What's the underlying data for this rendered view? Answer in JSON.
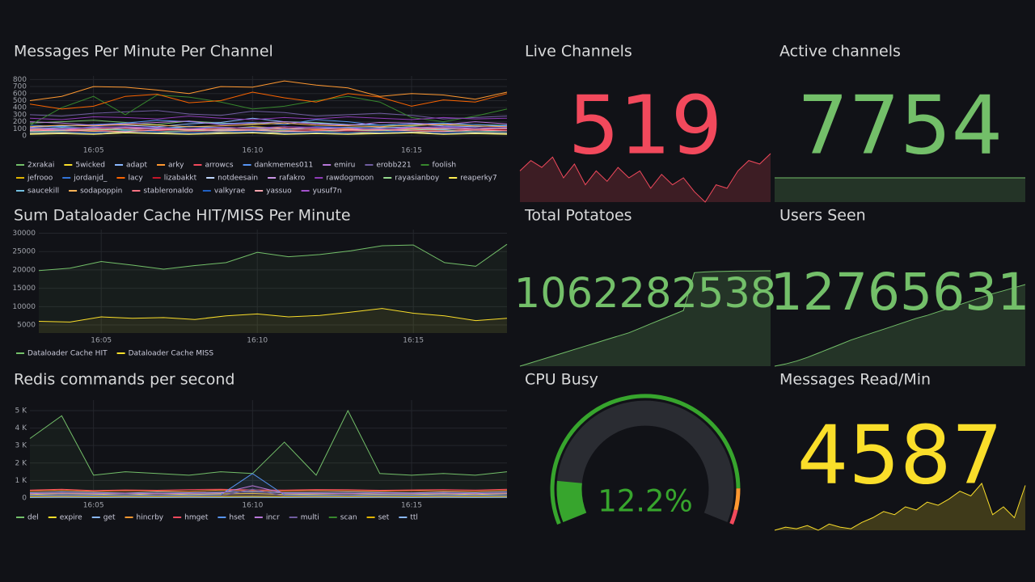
{
  "chart_data": [
    {
      "type": "line",
      "title": "Messages Per Minute Per Channel",
      "x": [
        "16:03",
        "16:04",
        "16:05",
        "16:06",
        "16:07",
        "16:08",
        "16:09",
        "16:10",
        "16:11",
        "16:12",
        "16:13",
        "16:14",
        "16:15",
        "16:16",
        "16:17",
        "16:18"
      ],
      "xticks": [
        "16:05",
        "16:10",
        "16:15"
      ],
      "ylim": [
        0,
        850
      ],
      "yticks": [
        0,
        100,
        200,
        300,
        400,
        500,
        600,
        700,
        800
      ],
      "grid": true,
      "fill": false,
      "series": [
        {
          "name": "2xrakai",
          "color": "#73bf69",
          "values": [
            180,
            200,
            220,
            190,
            160,
            210,
            180,
            170,
            200,
            190,
            160,
            150,
            140,
            170,
            160,
            150
          ]
        },
        {
          "name": "5wicked",
          "color": "#fade2a",
          "values": [
            90,
            100,
            80,
            120,
            110,
            90,
            100,
            130,
            110,
            90,
            100,
            120,
            110,
            100,
            90,
            110
          ]
        },
        {
          "name": "adapt",
          "color": "#8ab8ff",
          "values": [
            120,
            140,
            160,
            150,
            130,
            170,
            190,
            250,
            200,
            180,
            160,
            150,
            170,
            140,
            130,
            150
          ]
        },
        {
          "name": "arky",
          "color": "#ff9830",
          "values": [
            500,
            560,
            700,
            690,
            650,
            600,
            700,
            690,
            780,
            720,
            680,
            560,
            600,
            580,
            520,
            620
          ]
        },
        {
          "name": "arrowcs",
          "color": "#f2495c",
          "values": [
            60,
            80,
            70,
            90,
            100,
            80,
            70,
            90,
            80,
            60,
            70,
            80,
            90,
            70,
            60,
            80
          ]
        },
        {
          "name": "dankmemes011",
          "color": "#5794f2",
          "values": [
            150,
            130,
            160,
            180,
            220,
            200,
            170,
            190,
            160,
            230,
            200,
            150,
            170,
            180,
            160,
            140
          ]
        },
        {
          "name": "emiru",
          "color": "#b877d9",
          "values": [
            200,
            180,
            150,
            170,
            190,
            210,
            160,
            180,
            200,
            170,
            150,
            190,
            180,
            160,
            200,
            170
          ]
        },
        {
          "name": "erobb221",
          "color": "#705da0",
          "values": [
            300,
            280,
            320,
            340,
            360,
            310,
            290,
            350,
            330,
            280,
            300,
            320,
            290,
            240,
            260,
            280
          ]
        },
        {
          "name": "foolish",
          "color": "#37872d",
          "values": [
            150,
            400,
            560,
            300,
            580,
            550,
            480,
            380,
            420,
            500,
            560,
            480,
            260,
            200,
            280,
            380
          ]
        },
        {
          "name": "jefrooo",
          "color": "#e0b400",
          "values": [
            40,
            50,
            60,
            50,
            40,
            60,
            50,
            40,
            50,
            60,
            50,
            40,
            50,
            60,
            50,
            40
          ]
        },
        {
          "name": "jordanjd_",
          "color": "#3274d9",
          "values": [
            110,
            90,
            130,
            120,
            100,
            140,
            110,
            120,
            100,
            130,
            120,
            110,
            100,
            120,
            110,
            100
          ]
        },
        {
          "name": "lacy",
          "color": "#fa6400",
          "values": [
            450,
            380,
            420,
            560,
            590,
            470,
            500,
            620,
            540,
            480,
            600,
            550,
            420,
            510,
            480,
            600
          ]
        },
        {
          "name": "lizabakkt",
          "color": "#c4162a",
          "values": [
            70,
            60,
            80,
            90,
            70,
            60,
            80,
            70,
            90,
            80,
            70,
            60,
            80,
            70,
            90,
            80
          ]
        },
        {
          "name": "notdeesain",
          "color": "#c0d8ff",
          "values": [
            30,
            40,
            30,
            50,
            40,
            30,
            40,
            50,
            30,
            40,
            30,
            40,
            50,
            30,
            40,
            30
          ]
        },
        {
          "name": "rafakro",
          "color": "#ca95e5",
          "values": [
            80,
            100,
            90,
            110,
            120,
            100,
            90,
            80,
            110,
            100,
            90,
            120,
            100,
            90,
            110,
            100
          ]
        },
        {
          "name": "rawdogmoon",
          "color": "#8f3bb8",
          "values": [
            250,
            230,
            270,
            260,
            240,
            280,
            250,
            230,
            260,
            240,
            270,
            250,
            230,
            260,
            240,
            250
          ]
        },
        {
          "name": "rayasianboy",
          "color": "#96d98d",
          "values": [
            60,
            70,
            90,
            80,
            60,
            70,
            80,
            90,
            70,
            60,
            80,
            70,
            90,
            80,
            60,
            70
          ]
        },
        {
          "name": "reaperky7",
          "color": "#ffee52",
          "values": [
            20,
            30,
            20,
            40,
            30,
            20,
            30,
            40,
            20,
            30,
            20,
            30,
            40,
            20,
            30,
            20
          ]
        },
        {
          "name": "saucekill",
          "color": "#73bfe0",
          "values": [
            100,
            120,
            110,
            90,
            100,
            130,
            120,
            110,
            90,
            100,
            120,
            110,
            130,
            100,
            90,
            110
          ]
        },
        {
          "name": "sodapoppin",
          "color": "#ffb357",
          "values": [
            130,
            150,
            140,
            160,
            150,
            130,
            140,
            160,
            180,
            150,
            140,
            130,
            150,
            160,
            140,
            130
          ]
        },
        {
          "name": "stableronaldo",
          "color": "#ff7383",
          "values": [
            90,
            80,
            100,
            110,
            90,
            80,
            100,
            90,
            110,
            100,
            90,
            80,
            100,
            110,
            90,
            100
          ]
        },
        {
          "name": "valkyrae",
          "color": "#1f60c4",
          "values": [
            50,
            60,
            50,
            70,
            60,
            50,
            60,
            70,
            50,
            60,
            50,
            60,
            70,
            50,
            60,
            50
          ]
        },
        {
          "name": "yassuo",
          "color": "#ffa6b0",
          "values": [
            70,
            80,
            70,
            60,
            80,
            90,
            70,
            80,
            60,
            70,
            80,
            90,
            70,
            60,
            80,
            70
          ]
        },
        {
          "name": "yusuf7n",
          "color": "#a352cc",
          "values": [
            110,
            100,
            120,
            130,
            110,
            100,
            120,
            110,
            130,
            120,
            110,
            100,
            120,
            130,
            110,
            120
          ]
        }
      ]
    },
    {
      "type": "line",
      "title": "Sum Dataloader Cache HIT/MISS Per Minute",
      "x": [
        "16:03",
        "16:04",
        "16:05",
        "16:06",
        "16:07",
        "16:08",
        "16:09",
        "16:10",
        "16:11",
        "16:12",
        "16:13",
        "16:14",
        "16:15",
        "16:16",
        "16:17",
        "16:18"
      ],
      "xticks": [
        "16:05",
        "16:10",
        "16:15"
      ],
      "ylim": [
        2800,
        31000
      ],
      "yticks": [
        5000,
        10000,
        15000,
        20000,
        25000,
        30000
      ],
      "grid": true,
      "fill": true,
      "series": [
        {
          "name": "Dataloader Cache HIT",
          "color": "#73bf69",
          "values": [
            19800,
            20500,
            22300,
            21300,
            20200,
            21200,
            22000,
            24800,
            23600,
            24200,
            25200,
            26600,
            26800,
            22000,
            21000,
            27000
          ]
        },
        {
          "name": "Dataloader Cache MISS",
          "color": "#fade2a",
          "values": [
            6000,
            5800,
            7200,
            6800,
            7000,
            6500,
            7500,
            8000,
            7200,
            7600,
            8500,
            9500,
            8200,
            7500,
            6200,
            6800
          ]
        }
      ]
    },
    {
      "type": "line",
      "title": "Redis commands per second",
      "x": [
        "16:03",
        "16:04",
        "16:05",
        "16:06",
        "16:07",
        "16:08",
        "16:09",
        "16:10",
        "16:11",
        "16:12",
        "16:13",
        "16:14",
        "16:15",
        "16:16",
        "16:17",
        "16:18"
      ],
      "xticks": [
        "16:05",
        "16:10",
        "16:15"
      ],
      "ylim": [
        0,
        5600
      ],
      "yticks": [
        0,
        {
          "value": 1000,
          "label": "1 K"
        },
        {
          "value": 2000,
          "label": "2 K"
        },
        {
          "value": 3000,
          "label": "3 K"
        },
        {
          "value": 4000,
          "label": "4 K"
        },
        {
          "value": 5000,
          "label": "5 K"
        }
      ],
      "grid": true,
      "fill": true,
      "series": [
        {
          "name": "del",
          "color": "#73bf69",
          "values": [
            3400,
            4700,
            1300,
            1500,
            1400,
            1300,
            1500,
            1400,
            3200,
            1300,
            5000,
            1400,
            1300,
            1400,
            1300,
            1500
          ]
        },
        {
          "name": "expire",
          "color": "#fade2a",
          "values": [
            200,
            250,
            220,
            180,
            240,
            200,
            230,
            260,
            200,
            220,
            240,
            210,
            190,
            230,
            200,
            250
          ]
        },
        {
          "name": "get",
          "color": "#8ab8ff",
          "values": [
            300,
            350,
            320,
            280,
            340,
            300,
            330,
            360,
            300,
            320,
            340,
            310,
            290,
            330,
            300,
            350
          ]
        },
        {
          "name": "hincrby",
          "color": "#ff9830",
          "values": [
            400,
            450,
            380,
            420,
            400,
            380,
            450,
            420,
            400,
            430,
            410,
            390,
            420,
            400,
            380,
            440
          ]
        },
        {
          "name": "hmget",
          "color": "#f2495c",
          "values": [
            450,
            500,
            420,
            460,
            440,
            480,
            500,
            460,
            450,
            480,
            470,
            440,
            460,
            480,
            450,
            500
          ]
        },
        {
          "name": "hset",
          "color": "#5794f2",
          "values": [
            150,
            180,
            160,
            170,
            150,
            160,
            180,
            1400,
            170,
            160,
            150,
            180,
            160,
            170,
            150,
            180
          ]
        },
        {
          "name": "incr",
          "color": "#b877d9",
          "values": [
            250,
            280,
            260,
            270,
            250,
            260,
            280,
            700,
            270,
            260,
            250,
            280,
            260,
            270,
            250,
            280
          ]
        },
        {
          "name": "multi",
          "color": "#705da0",
          "values": [
            100,
            120,
            110,
            100,
            120,
            110,
            100,
            500,
            110,
            100,
            120,
            110,
            100,
            120,
            110,
            100
          ]
        },
        {
          "name": "scan",
          "color": "#37872d",
          "values": [
            50,
            60,
            50,
            60,
            50,
            60,
            50,
            60,
            50,
            60,
            50,
            60,
            50,
            60,
            50,
            60
          ]
        },
        {
          "name": "set",
          "color": "#e0b400",
          "values": [
            80,
            90,
            80,
            90,
            80,
            90,
            80,
            90,
            80,
            90,
            80,
            90,
            80,
            90,
            80,
            90
          ]
        },
        {
          "name": "ttl",
          "color": "#8ab8ff",
          "values": [
            30,
            40,
            30,
            40,
            30,
            40,
            30,
            40,
            30,
            40,
            30,
            40,
            30,
            40,
            30,
            40
          ]
        }
      ]
    },
    {
      "type": "stat",
      "title": "Live Channels",
      "value": 519,
      "color": "#f2495c",
      "sparkline": [
        560,
        590,
        570,
        600,
        540,
        580,
        520,
        560,
        530,
        570,
        540,
        560,
        510,
        550,
        520,
        540,
        500,
        470,
        520,
        510,
        560,
        590,
        580,
        610
      ]
    },
    {
      "type": "stat",
      "title": "Active channels",
      "value": 7754,
      "color": "#73bf69",
      "sparkline": [
        7754,
        7754,
        7754,
        7754,
        7754,
        7754,
        7754,
        7754,
        7754,
        7754,
        7754,
        7754
      ]
    },
    {
      "type": "stat",
      "title": "Total Potatoes",
      "value": 1062282538,
      "color": "#73bf69",
      "sparkline": [
        1058000000,
        1058150000,
        1058300000,
        1058450000,
        1058600000,
        1058750000,
        1058900000,
        1059050000,
        1059200000,
        1059350000,
        1059500000,
        1059700000,
        1059900000,
        1060100000,
        1060300000,
        1060500000,
        1062200000,
        1062230000,
        1062250000,
        1062260000,
        1062270000,
        1062275000,
        1062280000,
        1062282538
      ]
    },
    {
      "type": "stat",
      "title": "Users Seen",
      "value": 12765631,
      "color": "#73bf69",
      "sparkline": [
        12760000,
        12760150,
        12760350,
        12760600,
        12760900,
        12761200,
        12761500,
        12761800,
        12762050,
        12762300,
        12762550,
        12762800,
        12763050,
        12763300,
        12763500,
        12763750,
        12764000,
        12764250,
        12764500,
        12764750,
        12765000,
        12765200,
        12765420,
        12765631
      ]
    },
    {
      "type": "gauge",
      "title": "CPU Busy",
      "value": 12.2,
      "value_label": "12.2%",
      "lim": [
        0,
        100
      ],
      "thresholds": [
        {
          "value": 0,
          "color": "#37a52d"
        },
        {
          "value": 90,
          "color": "#ff9830"
        },
        {
          "value": 96,
          "color": "#f2495c"
        }
      ]
    },
    {
      "type": "stat",
      "title": "Messages Read/Min",
      "value": 4587,
      "color": "#fade2a",
      "sparkline": [
        4300,
        4320,
        4310,
        4330,
        4300,
        4340,
        4320,
        4310,
        4350,
        4380,
        4420,
        4400,
        4450,
        4430,
        4480,
        4460,
        4500,
        4550,
        4520,
        4600,
        4400,
        4450,
        4380,
        4587
      ]
    }
  ]
}
